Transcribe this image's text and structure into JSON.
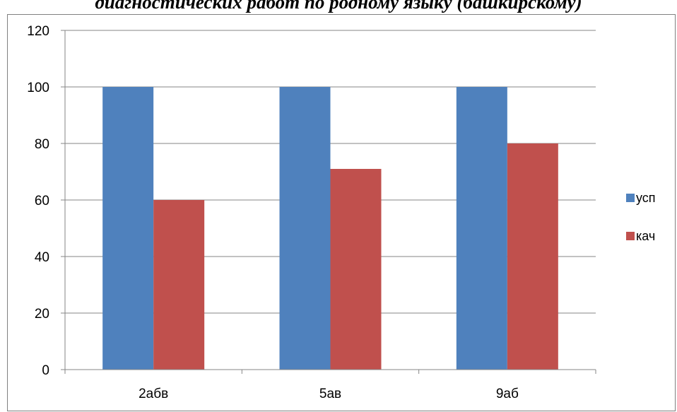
{
  "chart_data": {
    "type": "bar",
    "title": "диагностических работ по родному языку (башкирскому)",
    "categories": [
      "2абв",
      "5ав",
      "9аб"
    ],
    "series": [
      {
        "name": "усп",
        "values": [
          100,
          100,
          100
        ],
        "color": "#4F81BD"
      },
      {
        "name": "кач",
        "values": [
          60,
          71,
          80
        ],
        "color": "#C0504D"
      }
    ],
    "xlabel": "",
    "ylabel": "",
    "ylim": [
      0,
      120
    ],
    "yticks": [
      0,
      20,
      40,
      60,
      80,
      100,
      120
    ],
    "grid": true,
    "legend": "right"
  }
}
